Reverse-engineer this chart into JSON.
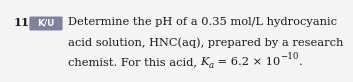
{
  "number": "11.",
  "badge_text": "K/U",
  "badge_bg": "#8080a0",
  "badge_text_color": "#ffffff",
  "line1": "Determine the pH of a 0.35 mol/L hydrocyanic",
  "line2": "acid solution, HNC(aq), prepared by a research",
  "line3_pre": "chemist. For this acid, ",
  "line3_K": "K",
  "line3_sub": "a",
  "line3_mid": " = 6.2 × 10",
  "line3_sup": "−10",
  "line3_end": ".",
  "font_size": 8.2,
  "text_color": "#1a1a1a",
  "bg_color": "#f4f4f4",
  "number_bold": true
}
